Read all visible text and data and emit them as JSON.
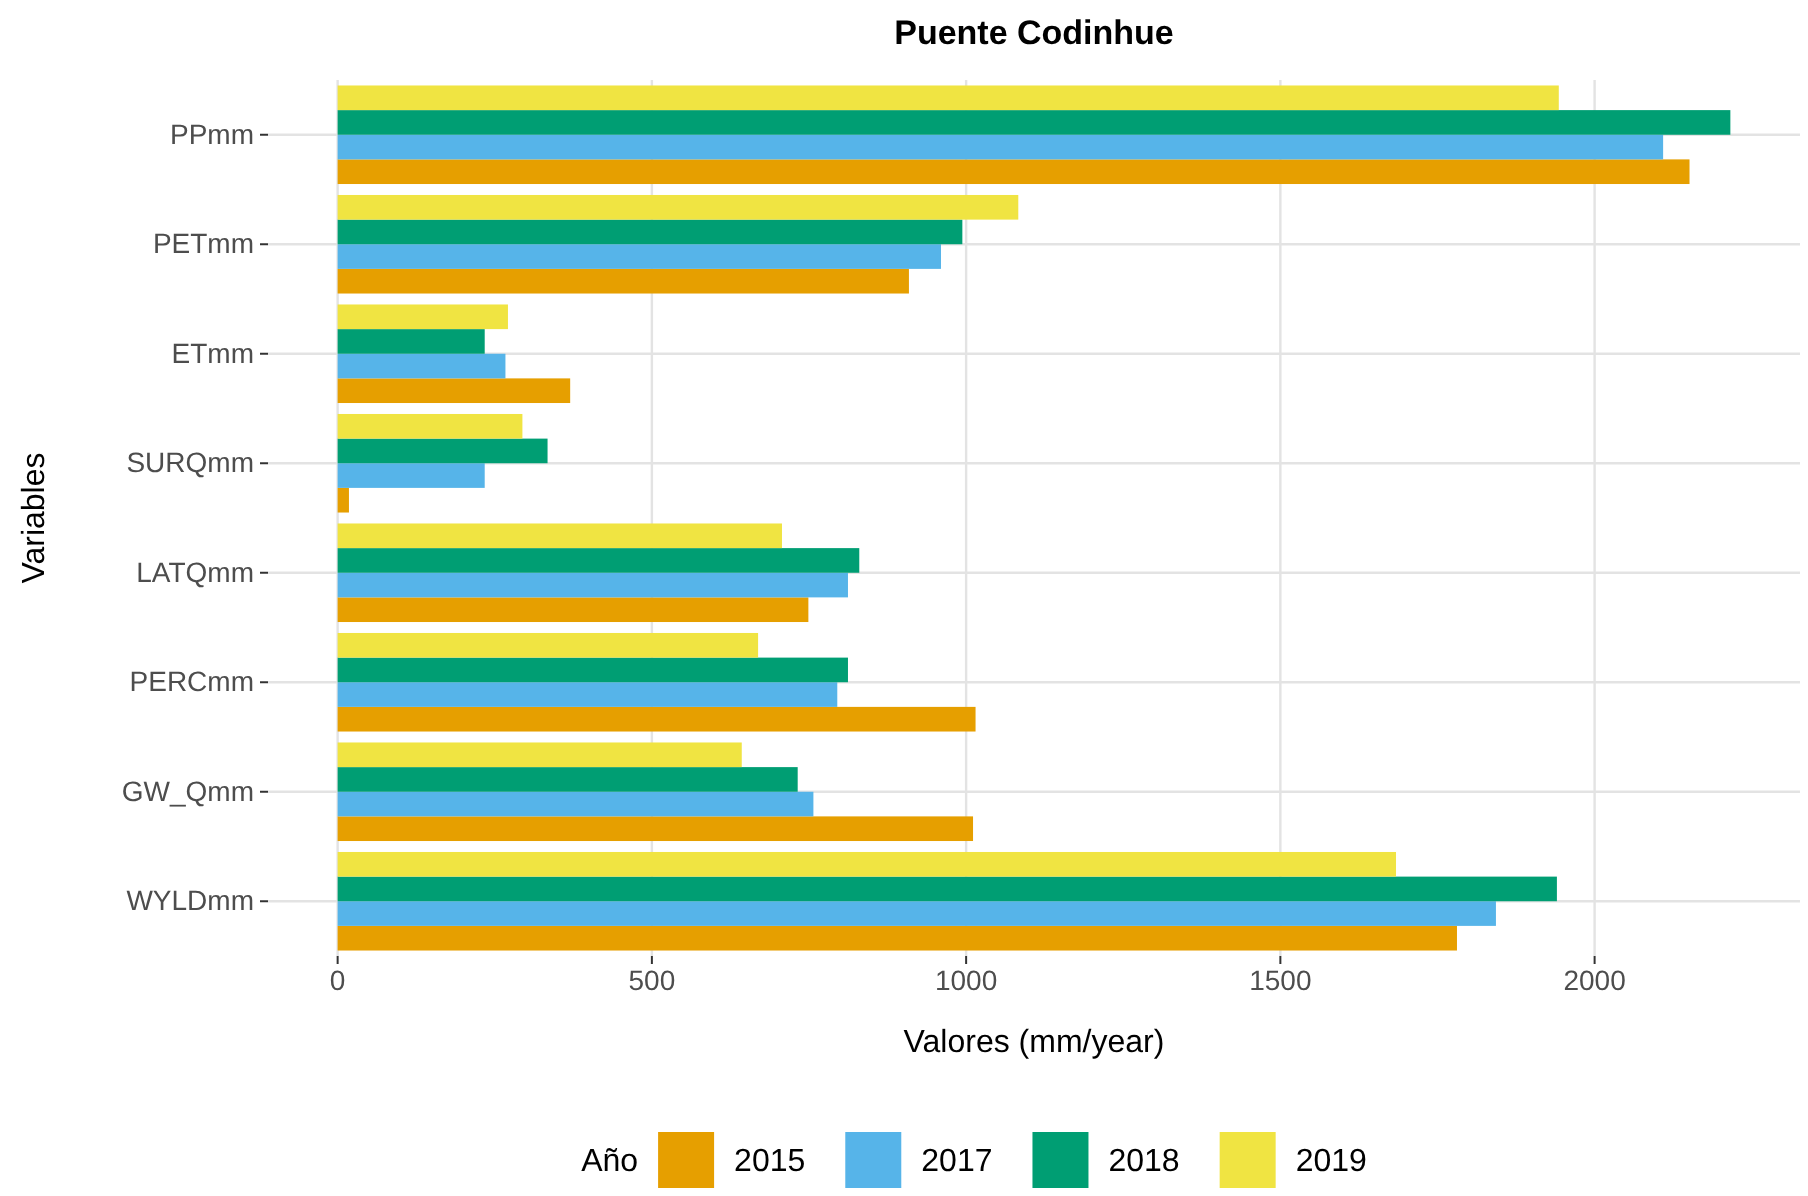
{
  "chart_data": {
    "type": "bar",
    "orientation": "horizontal",
    "title": "Puente Codinhue",
    "xlabel": "Valores (mm/year)",
    "ylabel": "Variables",
    "legend_title": "Año",
    "categories": [
      "PPmm",
      "PETmm",
      "ETmm",
      "SURQmm",
      "LATQmm",
      "PERCmm",
      "GW_Qmm",
      "WYLDmm"
    ],
    "series": [
      {
        "name": "2015",
        "color": "#e69f00",
        "values": [
          2151,
          909,
          370,
          18,
          749,
          1015,
          1011,
          1781
        ]
      },
      {
        "name": "2017",
        "color": "#56b4e9",
        "values": [
          2109,
          960,
          267,
          234,
          812,
          795,
          757,
          1843
        ]
      },
      {
        "name": "2018",
        "color": "#009e73",
        "values": [
          2216,
          994,
          234,
          334,
          830,
          812,
          732,
          1940
        ]
      },
      {
        "name": "2019",
        "color": "#f0e442",
        "values": [
          1943,
          1083,
          271,
          294,
          707,
          669,
          643,
          1684
        ]
      }
    ],
    "xlim": [
      -110.8,
      2326.8
    ],
    "xticks": [
      0,
      500,
      1000,
      1500,
      2000
    ],
    "grid": true,
    "legend": "bottom"
  }
}
